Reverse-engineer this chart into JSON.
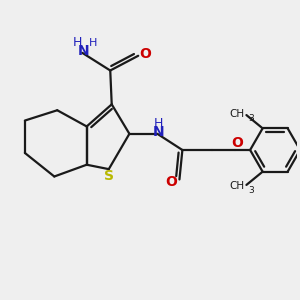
{
  "bg_color": "#efefef",
  "bond_color": "#1a1a1a",
  "S_color": "#b8b800",
  "N_color": "#2020bb",
  "O_color": "#cc0000",
  "lw": 1.6,
  "xlim": [
    0,
    10
  ],
  "ylim": [
    0,
    10
  ]
}
